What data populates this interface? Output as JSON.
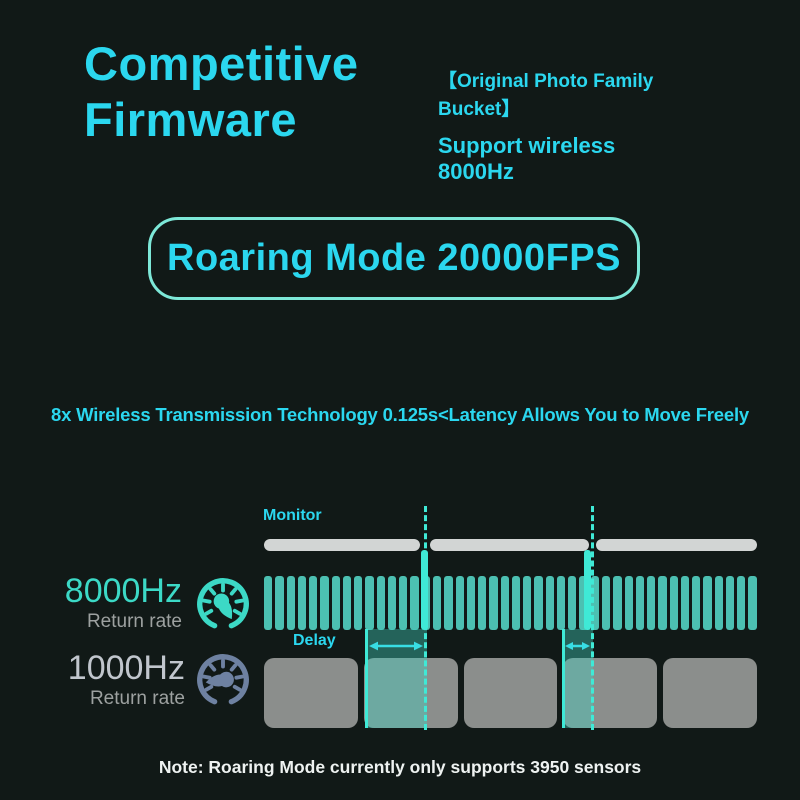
{
  "colors": {
    "bg": "#111917",
    "cyan": "#2bd7ef",
    "teal": "#4cc0b2",
    "teal2": "#3cd9c6",
    "teal_bright": "#3fe9d6",
    "mint": "#7de8d8",
    "monitor_gray": "#d2d5d4",
    "block_gray": "#8b8e8c",
    "slate": "#6e81a1",
    "silver": "#c1c6cd",
    "muted": "#9da1a0",
    "white": "#eef2f1",
    "arrow": "#38dde4",
    "delay_fill": "rgba(64,210,193,0.40)"
  },
  "header": {
    "title": "Competitive Firmware",
    "tagline": "【Original Photo Family Bucket】",
    "support": "Support wireless 8000Hz"
  },
  "badge": {
    "label": "Roaring Mode 20000FPS"
  },
  "feature_line": "8x Wireless Transmission Technology 0.125s<Latency Allows You to Move Freely",
  "diagram": {
    "monitor_label": "Monitor",
    "delay_label": "Delay",
    "fast_row": {
      "rate": "8000Hz",
      "sublabel": "Return rate",
      "bar_count": 44
    },
    "slow_row": {
      "rate": "1000Hz",
      "sublabel": "Return rate",
      "block_count": 5
    },
    "monitor_segment_count": 3,
    "refresh_marker_count": 2
  },
  "note": "Note: Roaring Mode currently only supports 3950 sensors"
}
